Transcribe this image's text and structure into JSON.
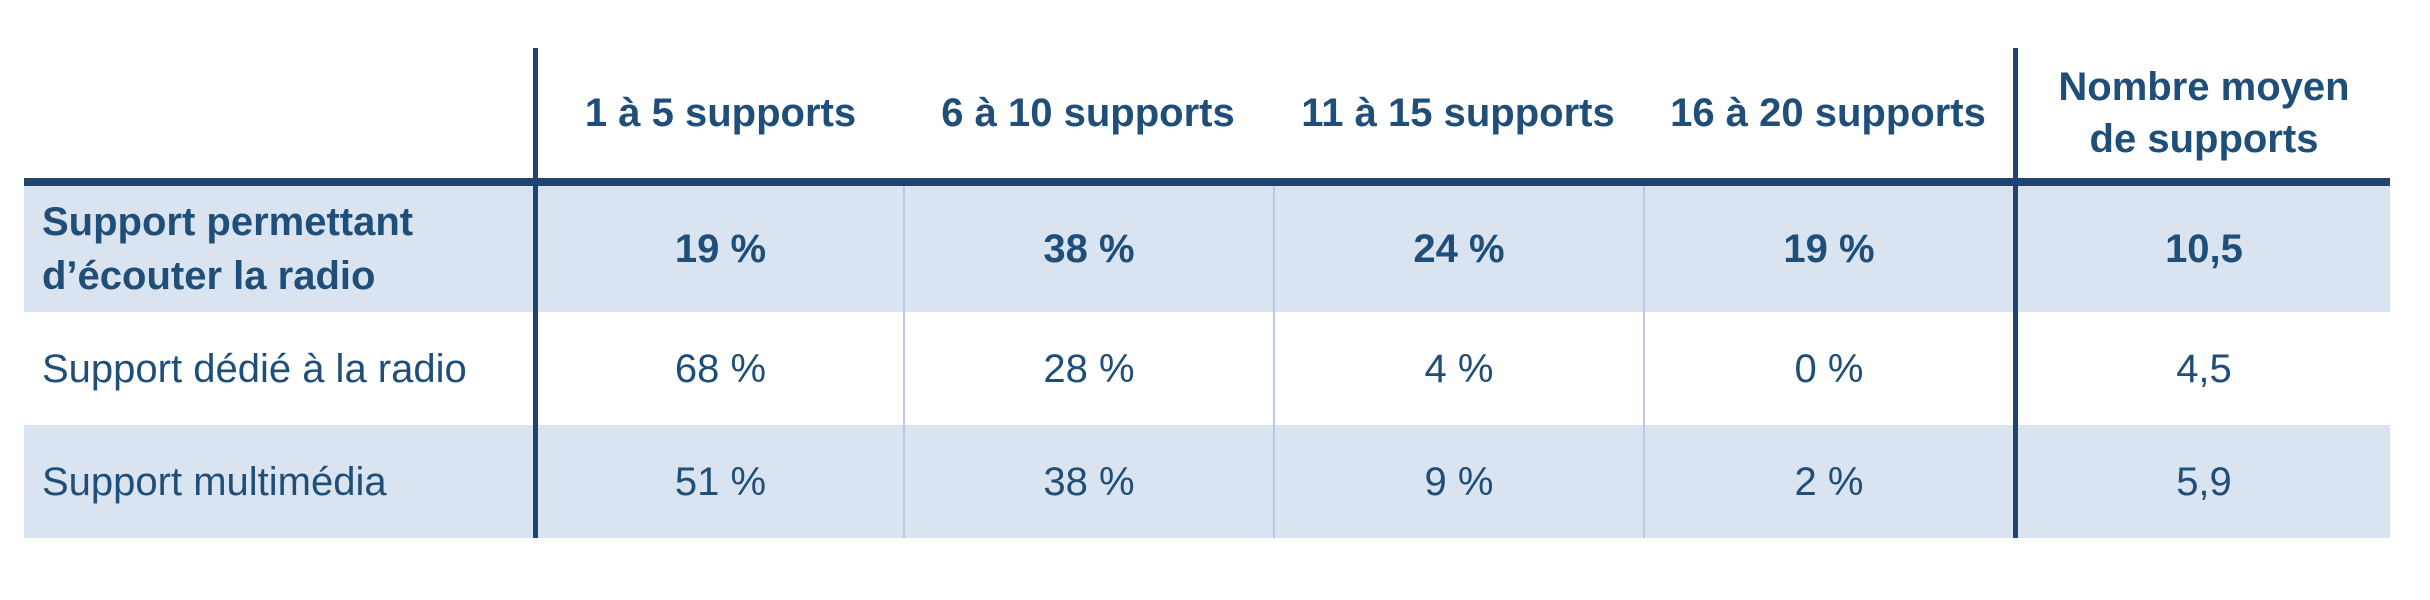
{
  "page": {
    "background": "#ffffff"
  },
  "colors": {
    "text_navy": "#1f4e79",
    "rule_navy": "#1f4470",
    "row_fill_blue": "#dae3f0",
    "row_fill_white": "#ffffff",
    "column_separator_blue": "#b9c9e4"
  },
  "chart_data": {
    "type": "table",
    "columns": [
      "",
      "1 à 5 supports",
      "6 à 10 supports",
      "11 à 15 supports",
      "16 à 20 supports",
      "Nombre moyen\nde supports"
    ],
    "rows": [
      {
        "label": "Support permettant d’écouter la radio",
        "values": [
          "19 %",
          "38 %",
          "24 %",
          "19 %",
          "10,5"
        ],
        "bold": true
      },
      {
        "label": "Support dédié à la radio",
        "values": [
          "68 %",
          "28 %",
          "4 %",
          "0 %",
          "4,5"
        ],
        "bold": false
      },
      {
        "label": "Support multimédia",
        "values": [
          "51 %",
          "38 %",
          "9 %",
          "2 %",
          "5,9"
        ],
        "bold": false
      }
    ]
  }
}
